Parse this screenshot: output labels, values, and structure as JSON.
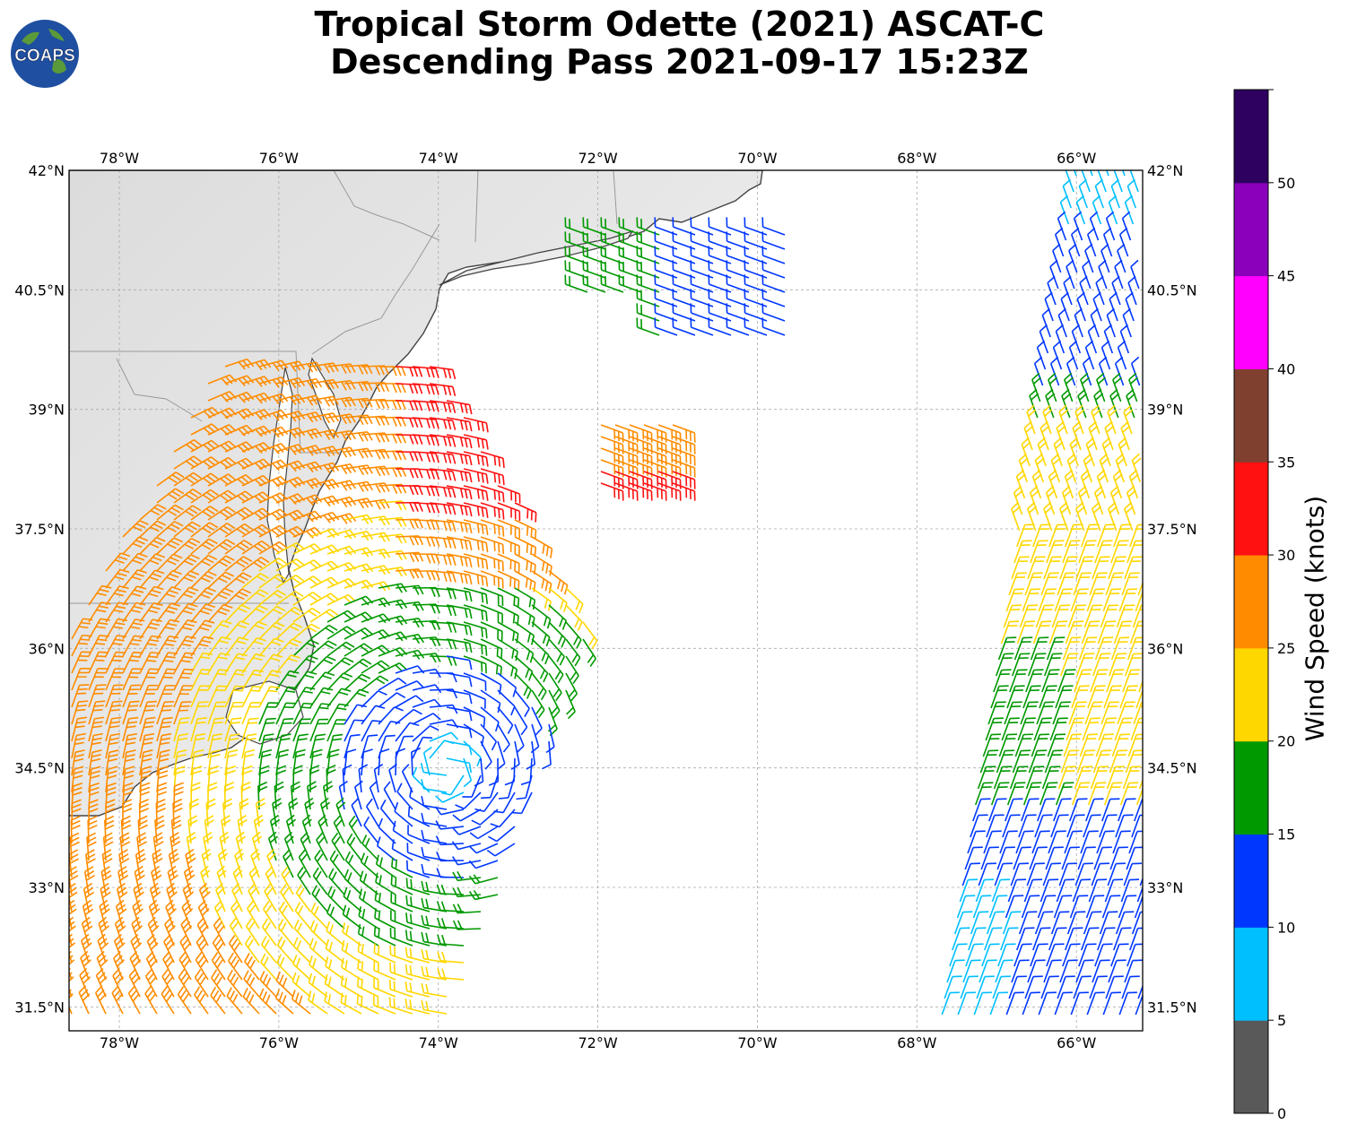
{
  "title": {
    "line1": "Tropical Storm Odette (2021) ASCAT-C",
    "line2": "Descending Pass 2021-09-17 15:23Z"
  },
  "logo": {
    "text": "COAPS"
  },
  "map": {
    "lon_labels": [
      "78°W",
      "76°W",
      "74°W",
      "72°W",
      "70°W",
      "68°W",
      "66°W"
    ],
    "lon_values": [
      -78,
      -76,
      -74,
      -72,
      -70,
      -68,
      -66
    ],
    "lat_labels": [
      "42°N",
      "40.5°N",
      "39°N",
      "37.5°N",
      "36°N",
      "34.5°N",
      "33°N",
      "31.5°N"
    ],
    "lat_values": [
      42,
      40.5,
      39,
      37.5,
      36,
      34.5,
      33,
      31.5
    ],
    "extent": {
      "lon_min": -78.63,
      "lon_max": -65.17,
      "lat_min": 31.2,
      "lat_max": 42.0
    },
    "gridlines": true,
    "feature": "Tropical Storm Odette cyclonic circulation east of the US Mid-Atlantic coast"
  },
  "colorbar": {
    "label": "Wind Speed (knots)",
    "tick_labels": [
      "0",
      "5",
      "10",
      "15",
      "20",
      "25",
      "30",
      "35",
      "40",
      "45",
      "50"
    ],
    "bins": [
      {
        "min": 0,
        "max": 5,
        "color": "#595959"
      },
      {
        "min": 5,
        "max": 10,
        "color": "#00bfff"
      },
      {
        "min": 10,
        "max": 15,
        "color": "#0037ff"
      },
      {
        "min": 15,
        "max": 20,
        "color": "#009900"
      },
      {
        "min": 20,
        "max": 25,
        "color": "#ffd700"
      },
      {
        "min": 25,
        "max": 30,
        "color": "#ff8c00"
      },
      {
        "min": 30,
        "max": 35,
        "color": "#ff1111"
      },
      {
        "min": 35,
        "max": 40,
        "color": "#804030"
      },
      {
        "min": 40,
        "max": 45,
        "color": "#ff00ff"
      },
      {
        "min": 45,
        "max": 50,
        "color": "#8b00bb"
      },
      {
        "min": 50,
        "max": 55,
        "color": "#2e0060"
      }
    ]
  },
  "storm_center": {
    "lon": -73.9,
    "lat": 34.5
  }
}
